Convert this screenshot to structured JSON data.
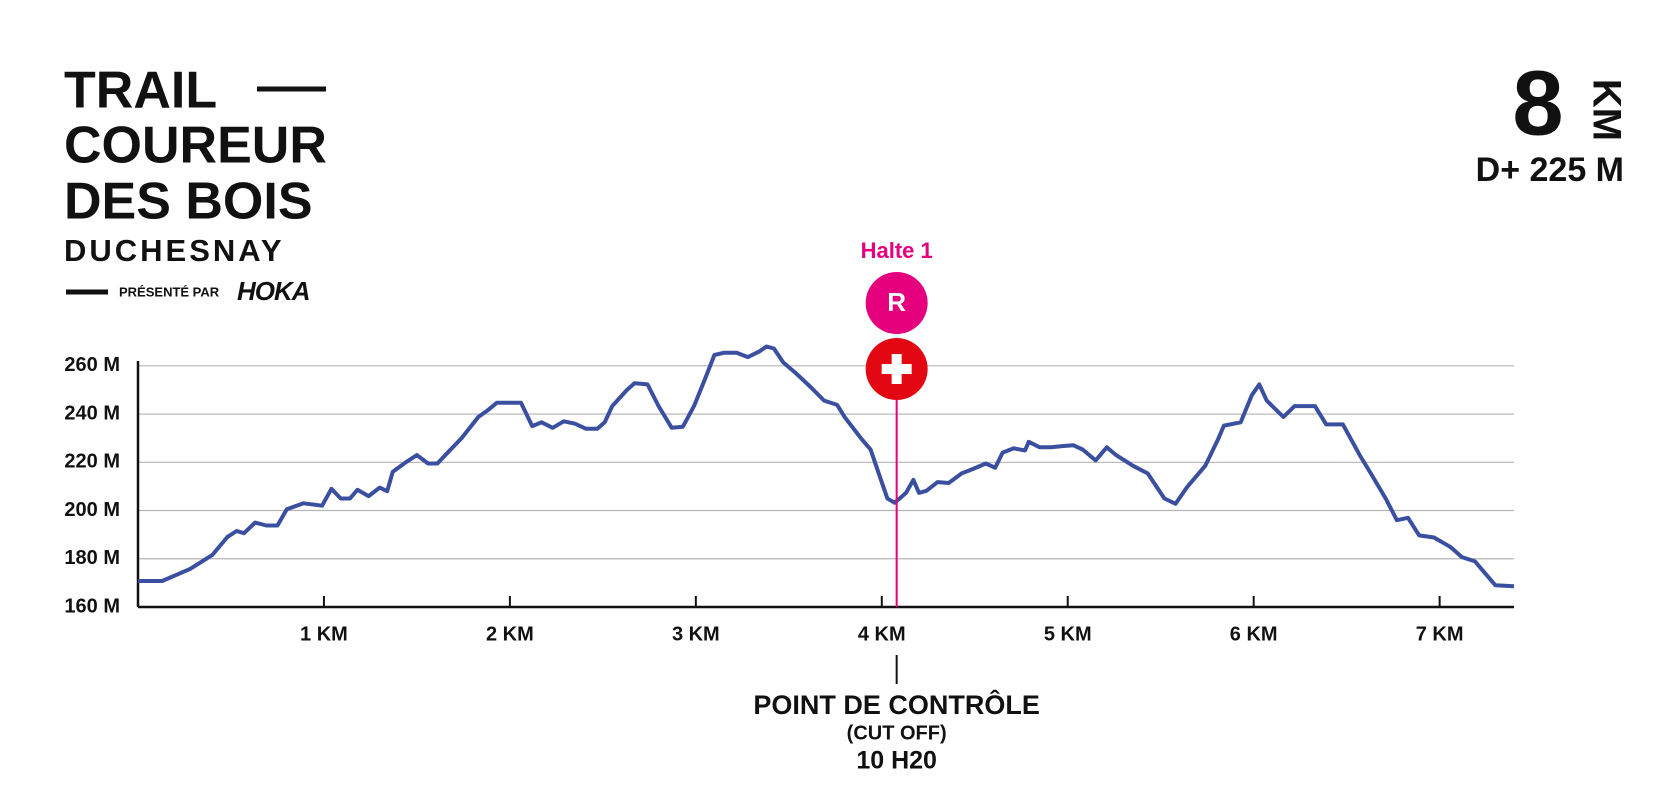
{
  "logo": {
    "line1": "TRAIL",
    "line2": "COUREUR",
    "line3": "DES BOIS",
    "line4": "DUCHESNAY",
    "presented": "PRÉSENTÉ PAR",
    "sponsor": "HOKA"
  },
  "summary": {
    "distance": "8",
    "distance_unit": "KM",
    "elevation_gain": "D+ 225 M"
  },
  "chart_data": {
    "type": "line",
    "color": "#3a4fa0",
    "grid": true,
    "x": [
      0,
      0.13,
      0.28,
      0.4,
      0.48,
      0.53,
      0.57,
      0.63,
      0.69,
      0.75,
      0.8,
      0.89,
      0.99,
      1.04,
      1.09,
      1.14,
      1.18,
      1.24,
      1.3,
      1.34,
      1.37,
      1.44,
      1.5,
      1.56,
      1.61,
      1.67,
      1.74,
      1.83,
      1.88,
      1.93,
      2.06,
      2.12,
      2.17,
      2.23,
      2.29,
      2.35,
      2.41,
      2.47,
      2.51,
      2.55,
      2.63,
      2.67,
      2.74,
      2.8,
      2.87,
      2.93,
      2.99,
      3.05,
      3.1,
      3.15,
      3.22,
      3.28,
      3.34,
      3.38,
      3.42,
      3.47,
      3.54,
      3.62,
      3.69,
      3.76,
      3.8,
      3.89,
      3.94,
      3.99,
      4.03,
      4.07,
      4.13,
      4.17,
      4.2,
      4.24,
      4.3,
      4.36,
      4.43,
      4.49,
      4.56,
      4.61,
      4.65,
      4.71,
      4.77,
      4.79,
      4.85,
      4.91,
      4.97,
      5.03,
      5.08,
      5.15,
      5.21,
      5.26,
      5.35,
      5.43,
      5.52,
      5.58,
      5.64,
      5.74,
      5.81,
      5.84,
      5.93,
      5.99,
      6.03,
      6.07,
      6.16,
      6.22,
      6.33,
      6.39,
      6.48,
      6.57,
      6.63,
      6.71,
      6.77,
      6.83,
      6.89,
      6.97,
      7.06,
      7.12,
      7.19,
      7.25,
      7.3,
      7.4
    ],
    "values": [
      170.8,
      170.8,
      175.8,
      181.6,
      189,
      191.5,
      190.6,
      195,
      193.8,
      193.8,
      200.5,
      203,
      202,
      209,
      205,
      205,
      208.6,
      206,
      209.5,
      208,
      216,
      220,
      223,
      219.5,
      219.5,
      224.4,
      230,
      238.8,
      241.5,
      244.7,
      244.7,
      235,
      236.6,
      234.3,
      237,
      236,
      233.9,
      233.9,
      236.6,
      243.3,
      250,
      252.8,
      252.3,
      243.3,
      234.3,
      234.7,
      243.3,
      254.6,
      264.5,
      265.4,
      265.4,
      263.6,
      265.9,
      268,
      267.2,
      261.4,
      256.8,
      251,
      245.6,
      243.8,
      238.8,
      229.8,
      225.3,
      214,
      205,
      203.2,
      207.3,
      212.7,
      207.3,
      208.2,
      211.8,
      211.4,
      215.4,
      217.2,
      219.5,
      217.7,
      224,
      225.8,
      224.9,
      228.5,
      226.2,
      226.2,
      226.7,
      227.1,
      225.3,
      220.8,
      226.2,
      223,
      218.6,
      215.4,
      205,
      202.8,
      209.5,
      218.6,
      229.8,
      235.2,
      236.6,
      247.8,
      252.3,
      245.6,
      238.8,
      243.3,
      243.3,
      235.7,
      235.7,
      223,
      215.4,
      205,
      196,
      197,
      189.7,
      188.8,
      184.8,
      180.7,
      178.9,
      173.5,
      169,
      168.6
    ],
    "xlim": [
      0,
      7.4
    ],
    "ylim": [
      160,
      262
    ],
    "xticks": [
      {
        "value": 1,
        "label": "1 KM"
      },
      {
        "value": 2,
        "label": "2 KM"
      },
      {
        "value": 3,
        "label": "3 KM"
      },
      {
        "value": 4,
        "label": "4 KM"
      },
      {
        "value": 5,
        "label": "5 KM"
      },
      {
        "value": 6,
        "label": "6 KM"
      },
      {
        "value": 7,
        "label": "7 KM"
      }
    ],
    "yticks": [
      {
        "value": 160,
        "label": "160 M"
      },
      {
        "value": 180,
        "label": "180 M"
      },
      {
        "value": 200,
        "label": "200 M"
      },
      {
        "value": 220,
        "label": "220 M"
      },
      {
        "value": 240,
        "label": "240 M"
      },
      {
        "value": 260,
        "label": "260 M"
      }
    ],
    "station": {
      "x": 4.08,
      "name": "Halte 1",
      "icon": "R",
      "color": "#e5007e",
      "aid_color": "#e30613",
      "checkpoint": [
        "POINT DE CONTRÔLE",
        "(CUT OFF)",
        "10 H20"
      ]
    }
  }
}
